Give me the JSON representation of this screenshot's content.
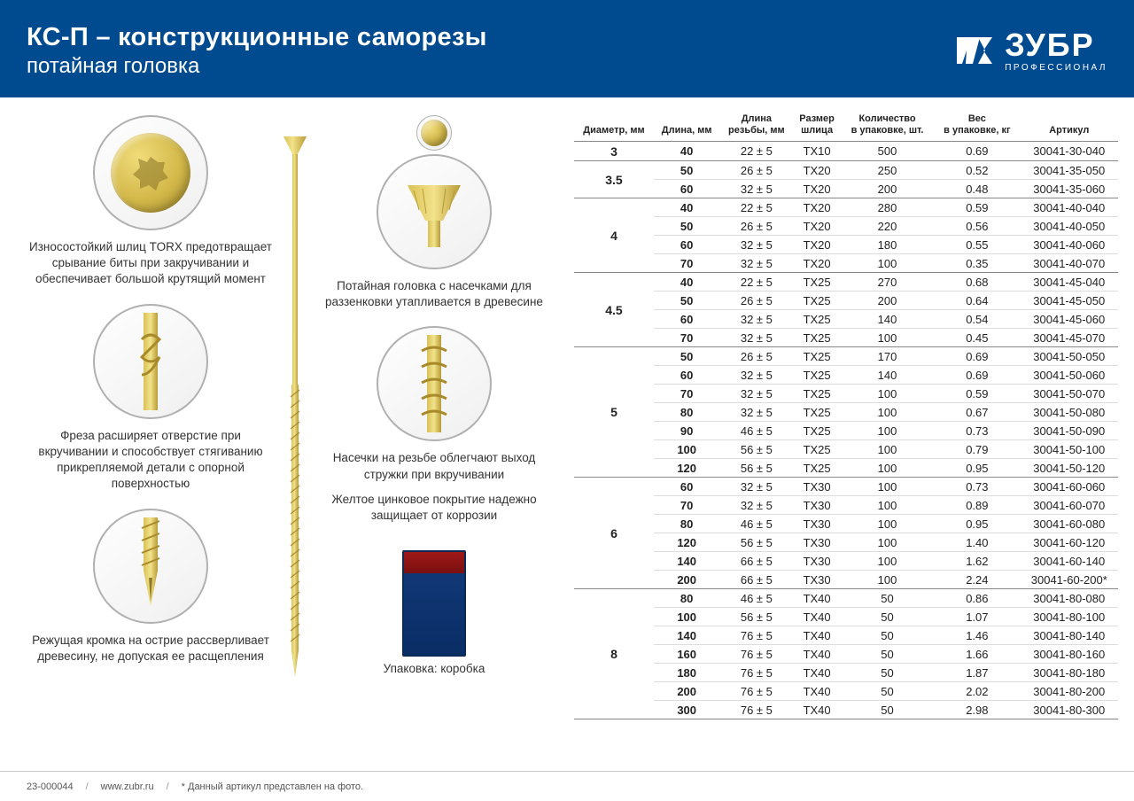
{
  "header": {
    "title": "КС-П – конструкционные саморезы",
    "subtitle": "потайная головка",
    "logo_main": "ЗУБР",
    "logo_sub": "ПРОФЕССИОНАЛ"
  },
  "features": {
    "torx": "Износостойкий шлиц TORX предотвращает срывание биты при закручивании и обеспечивает большой крутящий момент",
    "head": "Потайная головка с насечками для раззенковки утапливается в древесине",
    "cutter": "Фреза расширяет отверстие при вкручивании и способствует стягиванию прикрепляемой детали с опорной поверхностью",
    "notch": "Насечки на резьбе облегчают выход стружки при вкручивании",
    "zinc": "Желтое цинковое покрытие надежно защищает от коррозии",
    "tip": "Режущая кромка на острие рассверливает древесину, не допуская ее расщепления",
    "package": "Упаковка: коробка"
  },
  "table": {
    "headers": [
      "Диаметр, мм",
      "Длина, мм",
      "Длина\nрезьбы, мм",
      "Размер\nшлица",
      "Количество\nв упаковке, шт.",
      "Вес\nв упаковке, кг",
      "Артикул"
    ],
    "groups": [
      {
        "diam": "3",
        "rows": [
          [
            "40",
            "22 ± 5",
            "TX10",
            "500",
            "0.69",
            "30041-30-040"
          ]
        ]
      },
      {
        "diam": "3.5",
        "rows": [
          [
            "50",
            "26 ± 5",
            "TX20",
            "250",
            "0.52",
            "30041-35-050"
          ],
          [
            "60",
            "32 ± 5",
            "TX20",
            "200",
            "0.48",
            "30041-35-060"
          ]
        ]
      },
      {
        "diam": "4",
        "rows": [
          [
            "40",
            "22 ± 5",
            "TX20",
            "280",
            "0.59",
            "30041-40-040"
          ],
          [
            "50",
            "26 ± 5",
            "TX20",
            "220",
            "0.56",
            "30041-40-050"
          ],
          [
            "60",
            "32 ± 5",
            "TX20",
            "180",
            "0.55",
            "30041-40-060"
          ],
          [
            "70",
            "32 ± 5",
            "TX20",
            "100",
            "0.35",
            "30041-40-070"
          ]
        ]
      },
      {
        "diam": "4.5",
        "rows": [
          [
            "40",
            "22 ± 5",
            "TX25",
            "270",
            "0.68",
            "30041-45-040"
          ],
          [
            "50",
            "26 ± 5",
            "TX25",
            "200",
            "0.64",
            "30041-45-050"
          ],
          [
            "60",
            "32 ± 5",
            "TX25",
            "140",
            "0.54",
            "30041-45-060"
          ],
          [
            "70",
            "32 ± 5",
            "TX25",
            "100",
            "0.45",
            "30041-45-070"
          ]
        ]
      },
      {
        "diam": "5",
        "rows": [
          [
            "50",
            "26 ± 5",
            "TX25",
            "170",
            "0.69",
            "30041-50-050"
          ],
          [
            "60",
            "32 ± 5",
            "TX25",
            "140",
            "0.69",
            "30041-50-060"
          ],
          [
            "70",
            "32 ± 5",
            "TX25",
            "100",
            "0.59",
            "30041-50-070"
          ],
          [
            "80",
            "32 ± 5",
            "TX25",
            "100",
            "0.67",
            "30041-50-080"
          ],
          [
            "90",
            "46 ± 5",
            "TX25",
            "100",
            "0.73",
            "30041-50-090"
          ],
          [
            "100",
            "56 ± 5",
            "TX25",
            "100",
            "0.79",
            "30041-50-100"
          ],
          [
            "120",
            "56 ± 5",
            "TX25",
            "100",
            "0.95",
            "30041-50-120"
          ]
        ]
      },
      {
        "diam": "6",
        "rows": [
          [
            "60",
            "32 ± 5",
            "TX30",
            "100",
            "0.73",
            "30041-60-060"
          ],
          [
            "70",
            "32 ± 5",
            "TX30",
            "100",
            "0.89",
            "30041-60-070"
          ],
          [
            "80",
            "46 ± 5",
            "TX30",
            "100",
            "0.95",
            "30041-60-080"
          ],
          [
            "120",
            "56 ± 5",
            "TX30",
            "100",
            "1.40",
            "30041-60-120"
          ],
          [
            "140",
            "66 ± 5",
            "TX30",
            "100",
            "1.62",
            "30041-60-140"
          ],
          [
            "200",
            "66 ± 5",
            "TX30",
            "100",
            "2.24",
            "30041-60-200*"
          ]
        ]
      },
      {
        "diam": "8",
        "rows": [
          [
            "80",
            "46 ± 5",
            "TX40",
            "50",
            "0.86",
            "30041-80-080"
          ],
          [
            "100",
            "56 ± 5",
            "TX40",
            "50",
            "1.07",
            "30041-80-100"
          ],
          [
            "140",
            "76 ± 5",
            "TX40",
            "50",
            "1.46",
            "30041-80-140"
          ],
          [
            "160",
            "76 ± 5",
            "TX40",
            "50",
            "1.66",
            "30041-80-160"
          ],
          [
            "180",
            "76 ± 5",
            "TX40",
            "50",
            "1.87",
            "30041-80-180"
          ],
          [
            "200",
            "76 ± 5",
            "TX40",
            "50",
            "2.02",
            "30041-80-200"
          ],
          [
            "300",
            "76 ± 5",
            "TX40",
            "50",
            "2.98",
            "30041-80-300"
          ]
        ]
      }
    ]
  },
  "footer": {
    "code": "23-000044",
    "url": "www.zubr.ru",
    "note": "* Данный артикул представлен на фото."
  },
  "colors": {
    "header_bg": "#004a8f",
    "screw_gold_light": "#f0dc7a",
    "screw_gold_dark": "#b9a03a"
  }
}
